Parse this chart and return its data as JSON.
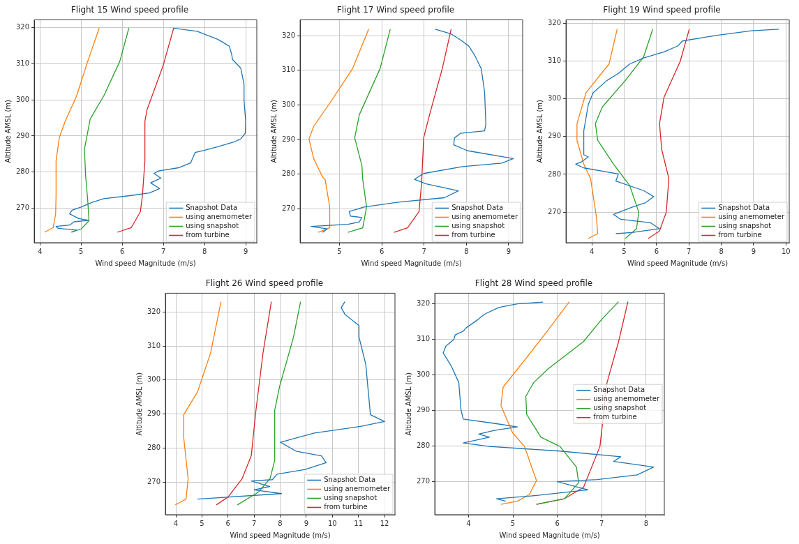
{
  "chart_data": [
    {
      "type": "line",
      "title": "Flight 15 Wind speed profile",
      "xlabel": "Wind speed Magnitude (m/s)",
      "ylabel": "Altitude AMSL (m)",
      "xlim": [
        3.86,
        9.27
      ],
      "xticks": [
        4,
        5,
        6,
        7,
        8,
        9
      ],
      "ylim": [
        260.4,
        322.2
      ],
      "yticks": [
        270,
        280,
        290,
        300,
        310,
        320
      ],
      "grid": true,
      "legend": "bottom right",
      "series": [
        {
          "name": "Snapshot Data",
          "color": "#1f77b4",
          "x": [
            7.24,
            7.82,
            8.32,
            8.6,
            8.66,
            8.68,
            8.88,
            8.96,
            8.96,
            9.0,
            8.99,
            8.88,
            8.71,
            8.32,
            7.99,
            7.77,
            7.71,
            7.66,
            7.38,
            6.88,
            6.77,
            6.94,
            6.69,
            6.91,
            6.66,
            6.22,
            5.55,
            5.27,
            5.0,
            4.78,
            4.72,
            4.94,
            5.19,
            4.83,
            4.72,
            4.39,
            4.44,
            4.89,
            4.78
          ],
          "values": [
            319.9,
            319,
            316.8,
            314.9,
            312.6,
            311.2,
            308.8,
            304.3,
            299.8,
            294,
            290.8,
            289.2,
            288.3,
            287,
            286,
            285.4,
            283.8,
            282.5,
            281.2,
            280.3,
            279.6,
            278.3,
            277,
            275.4,
            274.2,
            273.5,
            272.6,
            271.6,
            270.3,
            269.4,
            268.4,
            267.1,
            266.6,
            266.2,
            265.3,
            264.9,
            264.4,
            263.9,
            263.3
          ]
        },
        {
          "name": "using anemometer",
          "color": "#ff7f0e",
          "x": [
            5.44,
            5.16,
            4.89,
            4.61,
            4.47,
            4.39,
            4.39,
            4.38,
            4.32,
            4.11
          ],
          "values": [
            319.9,
            310.7,
            301.1,
            294,
            289.6,
            283.1,
            273.5,
            268.4,
            264.6,
            263.3
          ]
        },
        {
          "name": "using snapshot",
          "color": "#2ca02c",
          "x": [
            6.16,
            5.94,
            5.55,
            5.22,
            5.08,
            5.11,
            5.16,
            5.19,
            5.0,
            4.75
          ],
          "values": [
            319.9,
            310.7,
            301.1,
            294.7,
            286.3,
            278.7,
            272.2,
            266.5,
            264.2,
            263.3
          ]
        },
        {
          "name": "from turbine",
          "color": "#d62728",
          "x": [
            7.25,
            6.99,
            6.6,
            6.55,
            6.55,
            6.49,
            6.44,
            6.22,
            5.88
          ],
          "values": [
            319.9,
            309.4,
            297.2,
            294,
            283.1,
            273.5,
            269,
            264.6,
            263.3
          ]
        }
      ]
    },
    {
      "type": "line",
      "title": "Flight 17 Wind speed profile",
      "xlabel": "Wind speed Magnitude (m/s)",
      "ylabel": "Altitude AMSL (m)",
      "xlim": [
        4.07,
        9.33
      ],
      "xticks": [
        5,
        6,
        7,
        8,
        9
      ],
      "ylim": [
        260.2,
        324.6
      ],
      "yticks": [
        270,
        280,
        290,
        300,
        310,
        320
      ],
      "grid": true,
      "legend": "bottom right",
      "series": [
        {
          "name": "Snapshot Data",
          "color": "#1f77b4",
          "x": [
            7.26,
            7.64,
            7.86,
            8.05,
            8.19,
            8.27,
            8.35,
            8.43,
            8.46,
            8.43,
            7.86,
            7.72,
            7.7,
            8.02,
            9.11,
            8.84,
            7.91,
            6.99,
            6.77,
            7.05,
            7.81,
            7.48,
            6.39,
            5.58,
            5.23,
            5.26,
            5.53,
            5.47,
            5.2,
            4.33,
            4.71,
            4.6
          ],
          "values": [
            321.9,
            320.5,
            318.8,
            317.1,
            314.5,
            312.5,
            310.5,
            303.8,
            294.5,
            292.5,
            291.8,
            290.5,
            288.5,
            286.8,
            284.5,
            283.2,
            282.2,
            280.2,
            278.5,
            277.2,
            275.2,
            273.2,
            271.9,
            270.5,
            269.2,
            267.9,
            267.5,
            266.2,
            265.5,
            264.9,
            264.2,
            263.2
          ]
        },
        {
          "name": "using anemometer",
          "color": "#ff7f0e",
          "x": [
            5.69,
            5.31,
            4.77,
            4.39,
            4.28,
            4.39,
            4.6,
            4.66,
            4.77,
            4.77,
            4.5
          ],
          "values": [
            321.9,
            310.5,
            300.5,
            293.8,
            290.2,
            284.5,
            279.2,
            278.5,
            270.5,
            264.5,
            263.2
          ]
        },
        {
          "name": "using snapshot",
          "color": "#2ca02c",
          "x": [
            6.2,
            5.96,
            5.47,
            5.36,
            5.53,
            5.55,
            5.64,
            5.55,
            5.2
          ],
          "values": [
            321.9,
            310.5,
            297.2,
            290.5,
            282.5,
            278.5,
            270.5,
            264.5,
            263.2
          ]
        },
        {
          "name": "from turbine",
          "color": "#d62728",
          "x": [
            7.64,
            7.43,
            7.13,
            6.99,
            6.94,
            6.88,
            6.61,
            6.29
          ],
          "values": [
            321.9,
            310.5,
            297.2,
            290.5,
            277.2,
            269.2,
            264.5,
            263.2
          ]
        }
      ]
    },
    {
      "type": "line",
      "title": "Flight 19 Wind speed profile",
      "xlabel": "Wind speed Magnitude (m/s)",
      "ylabel": "Altitude AMSL (m)",
      "xlim": [
        3.2,
        10.1
      ],
      "xticks": [
        4,
        5,
        6,
        7,
        8,
        9,
        10
      ],
      "ylim": [
        261.9,
        320.9
      ],
      "yticks": [
        270,
        280,
        290,
        300,
        310,
        320
      ],
      "grid": true,
      "legend": "bottom right",
      "series": [
        {
          "name": "Snapshot Data",
          "color": "#1f77b4",
          "x": [
            9.78,
            8.93,
            7.87,
            6.8,
            6.66,
            6.23,
            5.6,
            5.17,
            4.82,
            4.46,
            4.04,
            3.89,
            3.75,
            3.75,
            3.89,
            3.68,
            3.5,
            3.75,
            4.82,
            4.74,
            5.6,
            5.91,
            5.66,
            5.24,
            4.67,
            4.89,
            5.81,
            6.09,
            5.24,
            4.74
          ],
          "values": [
            318.4,
            318,
            316.8,
            315.3,
            314,
            312.4,
            310.8,
            309.2,
            306.7,
            304.8,
            301.6,
            298.5,
            291.5,
            285.2,
            284.6,
            283.3,
            282.7,
            281.7,
            280.1,
            278.2,
            275.7,
            274.1,
            272.5,
            271.3,
            269.4,
            268.1,
            267.2,
            265.6,
            264.6,
            264.3
          ]
        },
        {
          "name": "using anemometer",
          "color": "#ff7f0e",
          "x": [
            4.78,
            4.53,
            3.82,
            3.54,
            3.54,
            3.75,
            3.96,
            4.14,
            4.18,
            3.89
          ],
          "values": [
            318.4,
            309.2,
            301.6,
            293.4,
            289,
            282.7,
            278.9,
            268.7,
            264.3,
            263
          ]
        },
        {
          "name": "using snapshot",
          "color": "#2ca02c",
          "x": [
            5.88,
            5.6,
            5.03,
            4.32,
            4.11,
            4.18,
            4.67,
            5.17,
            5.45,
            5.38,
            5.03
          ],
          "values": [
            318.4,
            311.1,
            304.8,
            297.8,
            293.4,
            289,
            282.7,
            277,
            270,
            265.6,
            263
          ]
        },
        {
          "name": "from turbine",
          "color": "#d62728",
          "x": [
            7.01,
            6.73,
            6.23,
            6.09,
            6.16,
            6.38,
            6.3,
            6.09,
            5.74
          ],
          "values": [
            318.4,
            309.9,
            300.4,
            293.4,
            286.5,
            278.9,
            270,
            265,
            263
          ]
        }
      ]
    },
    {
      "type": "line",
      "title": "Flight 26 Wind speed profile",
      "xlabel": "Wind speed Magnitude (m/s)",
      "ylabel": "Altitude AMSL (m)",
      "xlim": [
        3.6,
        12.4
      ],
      "xticks": [
        4,
        5,
        6,
        7,
        8,
        9,
        10,
        11,
        12
      ],
      "ylim": [
        260.4,
        325.5
      ],
      "yticks": [
        270,
        280,
        290,
        300,
        310,
        320
      ],
      "grid": true,
      "legend": "bottom right",
      "series": [
        {
          "name": "Snapshot Data",
          "color": "#1f77b4",
          "x": [
            10.48,
            10.34,
            10.48,
            11.02,
            11.02,
            11.11,
            11.28,
            11.46,
            12.0,
            11.11,
            9.31,
            8.01,
            8.6,
            9.58,
            9.76,
            8.96,
            7.88,
            7.7,
            6.89,
            7.6,
            7.0,
            8.05,
            4.83
          ],
          "values": [
            323,
            321.3,
            319.3,
            316,
            312.6,
            309.9,
            304.6,
            289.8,
            287.8,
            286.4,
            284.4,
            281.7,
            279.1,
            277.7,
            275.7,
            273.7,
            272.3,
            270.7,
            270.3,
            268.7,
            267.7,
            266.6,
            265
          ]
        },
        {
          "name": "using anemometer",
          "color": "#ff7f0e",
          "x": [
            5.73,
            5.33,
            4.83,
            4.3,
            4.3,
            4.47,
            4.39,
            3.98
          ],
          "values": [
            323,
            307.9,
            296.5,
            289.8,
            283.1,
            271,
            265,
            263.3
          ]
        },
        {
          "name": "using snapshot",
          "color": "#2ca02c",
          "x": [
            8.78,
            8.51,
            7.97,
            7.79,
            7.79,
            7.61,
            7.16,
            6.36
          ],
          "values": [
            323,
            312.6,
            297.9,
            291.1,
            276.4,
            271,
            267,
            263.3
          ]
        },
        {
          "name": "from turbine",
          "color": "#d62728",
          "x": [
            7.66,
            7.34,
            7.07,
            6.89,
            6.54,
            6.0,
            5.55
          ],
          "values": [
            323,
            307.9,
            291.1,
            277.7,
            271,
            265.6,
            263.3
          ]
        }
      ]
    },
    {
      "type": "line",
      "title": "Flight 28 Wind speed profile",
      "xlabel": "Wind speed Magnitude (m/s)",
      "ylabel": "Altitude AMSL (m)",
      "xlim": [
        3.24,
        8.41
      ],
      "xticks": [
        4,
        5,
        6,
        7,
        8
      ],
      "ylim": [
        260.6,
        322.9
      ],
      "yticks": [
        270,
        280,
        290,
        300,
        310,
        320
      ],
      "grid": true,
      "legend": "right",
      "series": [
        {
          "name": "Snapshot Data",
          "color": "#1f77b4",
          "x": [
            5.68,
            5.1,
            4.68,
            4.36,
            4.2,
            3.94,
            3.88,
            3.7,
            3.67,
            3.49,
            3.43,
            3.62,
            3.78,
            3.83,
            3.88,
            4.63,
            5.1,
            4.58,
            4.23,
            4.47,
            3.88,
            4.47,
            6.06,
            7.43,
            7.27,
            8.17,
            7.8,
            6.9,
            6.0,
            6.69,
            5.53,
            4.63,
            4.84
          ],
          "values": [
            320.4,
            319.9,
            318.9,
            317,
            315.4,
            313.1,
            312.2,
            311.2,
            309.9,
            308,
            306.1,
            302.2,
            297.8,
            290.1,
            287.5,
            286.2,
            285.3,
            284.3,
            283.3,
            282.4,
            280.8,
            279.8,
            278.5,
            276.9,
            275.6,
            274,
            271.8,
            270.5,
            269.9,
            267.6,
            266,
            265.1,
            264.4
          ]
        },
        {
          "name": "using anemometer",
          "color": "#ff7f0e",
          "x": [
            6.27,
            5.79,
            5.31,
            4.78,
            4.73,
            4.99,
            5.26,
            5.53,
            5.37,
            5.1,
            4.73
          ],
          "values": [
            320.5,
            312.5,
            304.8,
            296.5,
            291.3,
            283.7,
            279.8,
            270.2,
            266.3,
            264.4,
            263.5
          ]
        },
        {
          "name": "using snapshot",
          "color": "#2ca02c",
          "x": [
            7.38,
            7.01,
            6.59,
            5.79,
            5.47,
            5.29,
            5.31,
            5.63,
            6.06,
            6.43,
            6.48,
            6.16,
            5.53
          ],
          "values": [
            320.5,
            315.7,
            309.3,
            301.6,
            297.8,
            293.9,
            288.8,
            282.4,
            279.8,
            274,
            269.6,
            265.1,
            263.5
          ]
        },
        {
          "name": "from turbine",
          "color": "#d62728",
          "x": [
            7.59,
            7.38,
            7.12,
            6.96,
            6.59,
            6.16,
            5.53
          ],
          "values": [
            320.5,
            309.3,
            297.8,
            279.8,
            268.3,
            265.1,
            263.5
          ]
        }
      ]
    }
  ]
}
